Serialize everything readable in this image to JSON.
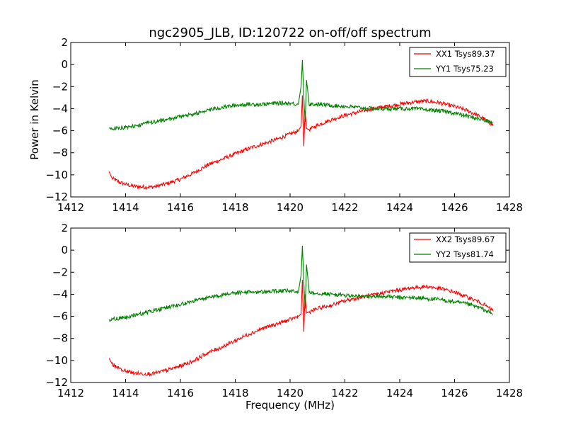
{
  "figure_title": "ngc2905_JLB, ID:120722 on-off/off spectrum",
  "chart_data": [
    {
      "type": "line",
      "title": "ngc2905_JLB, ID:120722 on-off/off spectrum",
      "xlabel": "",
      "ylabel": "Power in Kelvin",
      "xlim": [
        1412,
        1428
      ],
      "ylim": [
        -12,
        2
      ],
      "xticks": [
        "1412",
        "1414",
        "1416",
        "1418",
        "1420",
        "1422",
        "1424",
        "1426",
        "1428"
      ],
      "yticks": [
        "2",
        "0",
        "−2",
        "−4",
        "−6",
        "−8",
        "−10",
        "−12"
      ],
      "grid": false,
      "legend_position": "top-right",
      "series": [
        {
          "name": "XX1 Tsys89.37",
          "color": "#ff0000",
          "x": [
            1413.4,
            1413.5,
            1413.8,
            1414.2,
            1414.6,
            1415.0,
            1415.5,
            1416.0,
            1416.5,
            1417.0,
            1417.5,
            1418.0,
            1418.5,
            1419.0,
            1419.5,
            1420.0,
            1420.3,
            1420.4,
            1420.45,
            1420.5,
            1420.55,
            1420.6,
            1420.7,
            1421.0,
            1421.5,
            1422.0,
            1422.5,
            1423.0,
            1423.5,
            1424.0,
            1424.5,
            1425.0,
            1425.5,
            1426.0,
            1426.5,
            1427.0,
            1427.4
          ],
          "y": [
            -9.7,
            -10.3,
            -10.7,
            -11.0,
            -11.1,
            -11.1,
            -10.8,
            -10.4,
            -9.8,
            -9.1,
            -8.6,
            -8.1,
            -7.6,
            -7.2,
            -6.8,
            -6.3,
            -6.0,
            -5.6,
            -2.8,
            -7.4,
            -4.2,
            -5.8,
            -5.9,
            -5.5,
            -5.0,
            -4.6,
            -4.3,
            -4.0,
            -3.8,
            -3.6,
            -3.4,
            -3.3,
            -3.5,
            -3.8,
            -4.2,
            -4.8,
            -5.5
          ]
        },
        {
          "name": "YY1 Tsys75.23",
          "color": "#008000",
          "x": [
            1413.4,
            1414.0,
            1414.5,
            1415.0,
            1415.5,
            1416.0,
            1416.5,
            1417.0,
            1417.5,
            1418.0,
            1418.5,
            1419.0,
            1419.5,
            1420.0,
            1420.3,
            1420.4,
            1420.45,
            1420.5,
            1420.55,
            1420.6,
            1420.7,
            1421.0,
            1421.5,
            1422.0,
            1422.5,
            1423.0,
            1423.5,
            1424.0,
            1424.5,
            1425.0,
            1425.5,
            1426.0,
            1426.5,
            1427.0,
            1427.4
          ],
          "y": [
            -5.8,
            -5.7,
            -5.5,
            -5.2,
            -5.0,
            -4.7,
            -4.5,
            -4.1,
            -3.9,
            -3.7,
            -3.6,
            -3.6,
            -3.5,
            -3.5,
            -3.6,
            -2.0,
            0.4,
            -2.9,
            -5.2,
            -1.4,
            -3.6,
            -3.6,
            -3.7,
            -3.8,
            -3.9,
            -4.0,
            -4.0,
            -4.0,
            -4.0,
            -4.1,
            -4.2,
            -4.4,
            -4.7,
            -5.0,
            -5.3
          ]
        }
      ]
    },
    {
      "type": "line",
      "title": "",
      "xlabel": "Frequency (MHz)",
      "ylabel": "",
      "xlim": [
        1412,
        1428
      ],
      "ylim": [
        -12,
        2
      ],
      "xticks": [
        "1412",
        "1414",
        "1416",
        "1418",
        "1420",
        "1422",
        "1424",
        "1426",
        "1428"
      ],
      "yticks": [
        "2",
        "0",
        "−2",
        "−4",
        "−6",
        "−8",
        "−10",
        "−12"
      ],
      "grid": false,
      "legend_position": "top-right",
      "series": [
        {
          "name": "XX2 Tsys89.67",
          "color": "#ff0000",
          "x": [
            1413.4,
            1413.5,
            1413.8,
            1414.2,
            1414.6,
            1415.0,
            1415.5,
            1416.0,
            1416.5,
            1417.0,
            1417.5,
            1418.0,
            1418.5,
            1419.0,
            1419.5,
            1420.0,
            1420.3,
            1420.4,
            1420.45,
            1420.5,
            1420.55,
            1420.6,
            1420.7,
            1421.0,
            1421.5,
            1422.0,
            1422.5,
            1423.0,
            1423.5,
            1424.0,
            1424.5,
            1425.0,
            1425.5,
            1426.0,
            1426.5,
            1427.0,
            1427.4
          ],
          "y": [
            -9.8,
            -10.3,
            -10.8,
            -11.1,
            -11.2,
            -11.2,
            -10.9,
            -10.5,
            -10.0,
            -9.3,
            -8.8,
            -8.2,
            -7.6,
            -7.1,
            -6.7,
            -6.3,
            -6.0,
            -5.8,
            -2.7,
            -7.4,
            -4.0,
            -5.7,
            -5.6,
            -5.3,
            -5.0,
            -4.6,
            -4.3,
            -4.1,
            -3.8,
            -3.6,
            -3.4,
            -3.3,
            -3.5,
            -3.8,
            -4.3,
            -4.8,
            -5.5
          ]
        },
        {
          "name": "YY2 Tsys81.74",
          "color": "#008000",
          "x": [
            1413.4,
            1414.0,
            1414.5,
            1415.0,
            1415.5,
            1416.0,
            1416.5,
            1417.0,
            1417.5,
            1418.0,
            1418.5,
            1419.0,
            1419.5,
            1420.0,
            1420.3,
            1420.4,
            1420.45,
            1420.5,
            1420.55,
            1420.6,
            1420.7,
            1421.0,
            1421.5,
            1422.0,
            1422.5,
            1423.0,
            1423.5,
            1424.0,
            1424.5,
            1425.0,
            1425.5,
            1426.0,
            1426.5,
            1427.0,
            1427.4
          ],
          "y": [
            -6.3,
            -6.1,
            -5.8,
            -5.5,
            -5.2,
            -4.9,
            -4.6,
            -4.3,
            -4.1,
            -3.9,
            -3.8,
            -3.8,
            -3.7,
            -3.7,
            -3.8,
            -2.3,
            0.4,
            -2.9,
            -5.3,
            -1.3,
            -3.8,
            -3.9,
            -4.0,
            -4.1,
            -4.2,
            -4.2,
            -4.2,
            -4.3,
            -4.3,
            -4.4,
            -4.5,
            -4.7,
            -4.9,
            -5.3,
            -5.8
          ]
        }
      ]
    }
  ]
}
